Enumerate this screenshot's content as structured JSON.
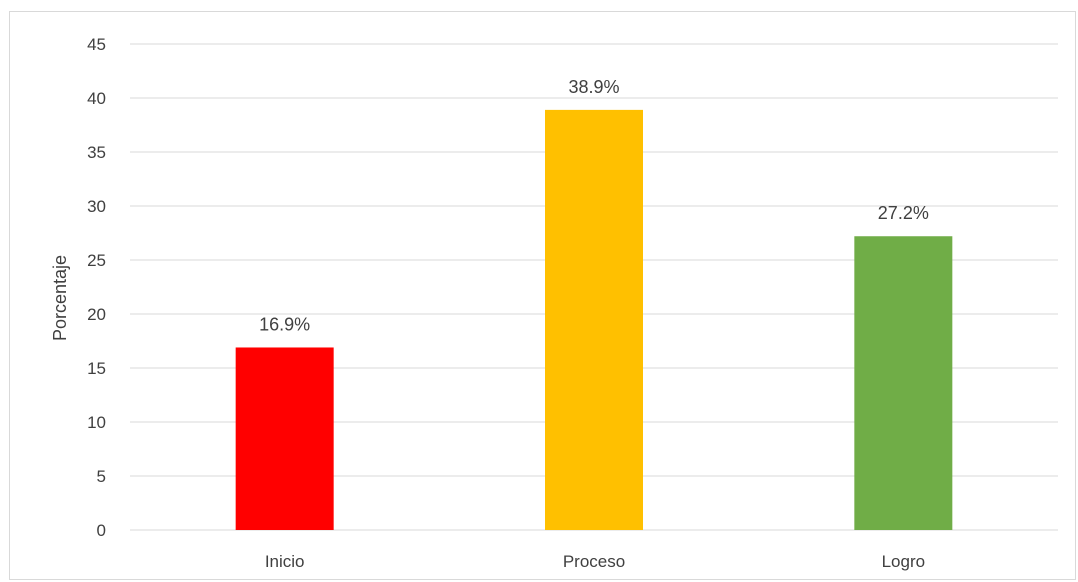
{
  "chart_data": {
    "type": "bar",
    "categories": [
      "Inicio",
      "Proceso",
      "Logro"
    ],
    "values": [
      16.9,
      38.9,
      27.2
    ],
    "data_labels": [
      "16.9%",
      "38.9%",
      "27.2%"
    ],
    "colors": [
      "#ff0000",
      "#ffc000",
      "#70ad47"
    ],
    "title": "",
    "xlabel": "",
    "ylabel": "Porcentaje",
    "ylim": [
      0,
      45
    ],
    "yticks": [
      0,
      5,
      10,
      15,
      20,
      25,
      30,
      35,
      40,
      45
    ],
    "grid": true,
    "legend": "none"
  }
}
